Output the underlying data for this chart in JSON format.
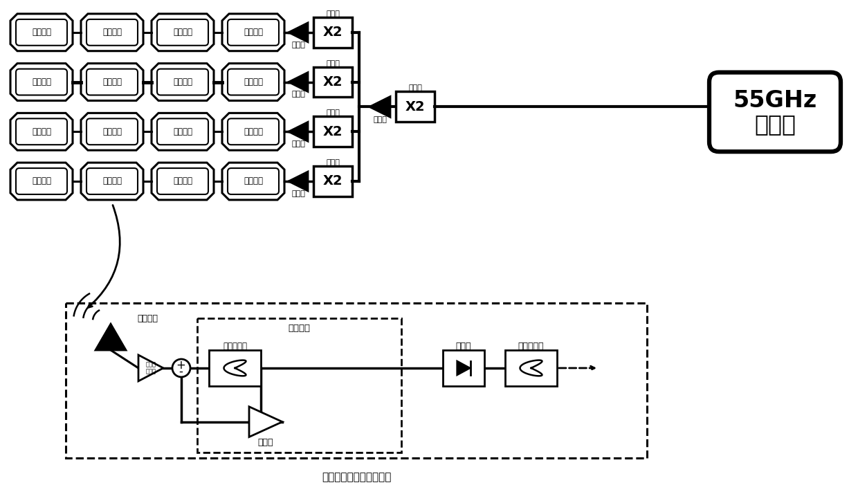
{
  "bg_color": "#ffffff",
  "cell_label": "探测单元",
  "buffer_label": "缓冲器",
  "doubler_label": "X2",
  "doubler_top_label": "二倍频",
  "pll_line1": "55GHz",
  "pll_line2": "锁相环",
  "pll_doubler_label": "X2",
  "pll_buffer_label": "缓冲器",
  "pll_doubler_top_label": "二倍频",
  "bottom_box_label": "基于再生结构的探测单元",
  "antenna_label": "接收天线",
  "lna_label": "低噪声\n放大器",
  "regen_label": "再生结构",
  "bpf_label": "带通滤波器",
  "amp_label": "放大器",
  "rect_label": "整流器",
  "lpf_label": "低通滤波器"
}
